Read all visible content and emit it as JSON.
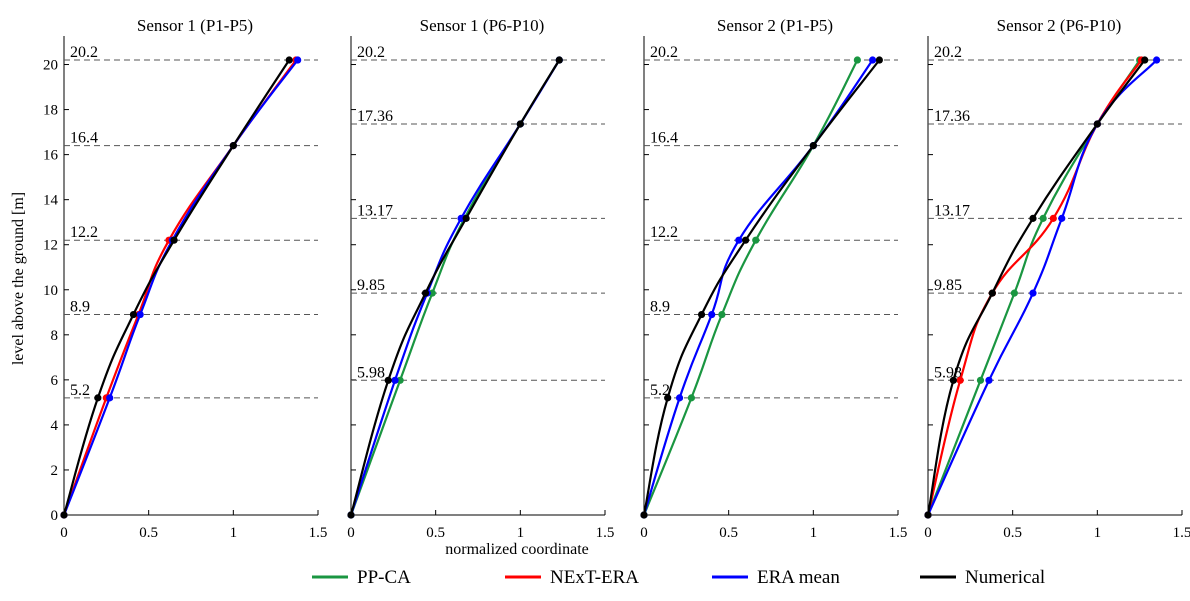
{
  "chart_data": {
    "type": "line",
    "ylabel": "level above the ground  [m]",
    "xlabel": "normalized coordinate",
    "xlim": [
      0,
      1.5
    ],
    "ylim": [
      0,
      21
    ],
    "xticks": [
      "0",
      "0.5",
      "1",
      "1.5"
    ],
    "yticks": [
      "0",
      "2",
      "4",
      "6",
      "8",
      "10",
      "12",
      "14",
      "16",
      "18",
      "20"
    ],
    "grid": false,
    "legend": "bottom",
    "legend_entries": [
      {
        "name": "PP-CA",
        "color": "#1a9641"
      },
      {
        "name": "NExT-ERA",
        "color": "#ff0000"
      },
      {
        "name": "ERA mean",
        "color": "#0000ff"
      },
      {
        "name": "Numerical",
        "color": "#000000"
      }
    ],
    "panels": [
      {
        "title": "Sensor 1  (P1-P5)",
        "levels": [
          5.2,
          8.9,
          12.2,
          16.4,
          20.2
        ],
        "level_labels": [
          "5.2",
          "8.9",
          "12.2",
          "16.4",
          "20.2"
        ],
        "series": [
          {
            "name": "NExT-ERA",
            "color": "#ff0000",
            "x": [
              0,
              0.25,
              0.44,
              0.62,
              1.0,
              1.37
            ],
            "y": [
              0,
              5.2,
              8.9,
              12.2,
              16.4,
              20.2
            ]
          },
          {
            "name": "ERA mean",
            "color": "#0000ff",
            "x": [
              0,
              0.27,
              0.45,
              0.64,
              1.0,
              1.38
            ],
            "y": [
              0,
              5.2,
              8.9,
              12.2,
              16.4,
              20.2
            ]
          },
          {
            "name": "Numerical",
            "color": "#000000",
            "x": [
              0,
              0.2,
              0.41,
              0.65,
              1.0,
              1.33
            ],
            "y": [
              0,
              5.2,
              8.9,
              12.2,
              16.4,
              20.2
            ]
          }
        ]
      },
      {
        "title": "Sensor 1  (P6-P10)",
        "levels": [
          5.98,
          9.85,
          13.17,
          17.36,
          20.2
        ],
        "level_labels": [
          "5.98",
          "9.85",
          "13.17",
          "17.36",
          "20.2"
        ],
        "series": [
          {
            "name": "PP-CA",
            "color": "#1a9641",
            "x": [
              0,
              0.29,
              0.48,
              0.67,
              1.0,
              1.23
            ],
            "y": [
              0,
              5.98,
              9.85,
              13.17,
              17.36,
              20.2
            ]
          },
          {
            "name": "ERA mean",
            "color": "#0000ff",
            "x": [
              0,
              0.26,
              0.45,
              0.65,
              1.0,
              1.23
            ],
            "y": [
              0,
              5.98,
              9.85,
              13.17,
              17.36,
              20.2
            ]
          },
          {
            "name": "Numerical",
            "color": "#000000",
            "x": [
              0,
              0.22,
              0.44,
              0.68,
              1.0,
              1.23
            ],
            "y": [
              0,
              5.98,
              9.85,
              13.17,
              17.36,
              20.2
            ]
          }
        ]
      },
      {
        "title": "Sensor 2  (P1-P5)",
        "levels": [
          5.2,
          8.9,
          12.2,
          16.4,
          20.2
        ],
        "level_labels": [
          "5.2",
          "8.9",
          "12.2",
          "16.4",
          "20.2"
        ],
        "series": [
          {
            "name": "PP-CA",
            "color": "#1a9641",
            "x": [
              0,
              0.28,
              0.46,
              0.66,
              1.0,
              1.26
            ],
            "y": [
              0,
              5.2,
              8.9,
              12.2,
              16.4,
              20.2
            ]
          },
          {
            "name": "ERA mean",
            "color": "#0000ff",
            "x": [
              0,
              0.21,
              0.4,
              0.56,
              1.0,
              1.35
            ],
            "y": [
              0,
              5.2,
              8.9,
              12.2,
              16.4,
              20.2
            ]
          },
          {
            "name": "Numerical",
            "color": "#000000",
            "x": [
              0,
              0.14,
              0.34,
              0.6,
              1.0,
              1.39
            ],
            "y": [
              0,
              5.2,
              8.9,
              12.2,
              16.4,
              20.2
            ]
          }
        ]
      },
      {
        "title": "Sensor 2  (P6-P10)",
        "levels": [
          5.98,
          9.85,
          13.17,
          17.36,
          20.2
        ],
        "level_labels": [
          "5.98",
          "9.85",
          "13.17",
          "17.36",
          "20.2"
        ],
        "series": [
          {
            "name": "PP-CA",
            "color": "#1a9641",
            "x": [
              0,
              0.31,
              0.51,
              0.68,
              1.0,
              1.25
            ],
            "y": [
              0,
              5.98,
              9.85,
              13.17,
              17.36,
              20.2
            ]
          },
          {
            "name": "NExT-ERA",
            "color": "#ff0000",
            "x": [
              0,
              0.19,
              0.38,
              0.74,
              1.0,
              1.26
            ],
            "y": [
              0,
              5.98,
              9.85,
              13.17,
              17.36,
              20.2
            ]
          },
          {
            "name": "ERA mean",
            "color": "#0000ff",
            "x": [
              0,
              0.36,
              0.62,
              0.79,
              1.0,
              1.35
            ],
            "y": [
              0,
              5.98,
              9.85,
              13.17,
              17.36,
              20.2
            ]
          },
          {
            "name": "Numerical",
            "color": "#000000",
            "x": [
              0,
              0.15,
              0.38,
              0.62,
              1.0,
              1.28
            ],
            "y": [
              0,
              5.98,
              9.85,
              13.17,
              17.36,
              20.2
            ]
          }
        ]
      }
    ]
  }
}
